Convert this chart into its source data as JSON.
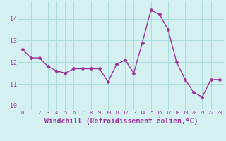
{
  "x": [
    0,
    1,
    2,
    3,
    4,
    5,
    6,
    7,
    8,
    9,
    10,
    11,
    12,
    13,
    14,
    15,
    16,
    17,
    18,
    19,
    20,
    21,
    22,
    23
  ],
  "y": [
    12.6,
    12.2,
    12.2,
    11.8,
    11.6,
    11.5,
    11.7,
    11.7,
    11.7,
    11.7,
    11.1,
    11.9,
    12.1,
    11.5,
    12.9,
    14.4,
    14.2,
    13.5,
    12.0,
    11.2,
    10.6,
    10.4,
    11.2,
    11.2
  ],
  "line_color": "#993399",
  "marker": "D",
  "markersize": 2.5,
  "linewidth": 1.0,
  "xlabel": "Windchill (Refroidissement éolien,°C)",
  "xlabel_fontsize": 7,
  "background_color": "#d4f0f0",
  "grid_color": "#aadddd",
  "tick_color": "#993399",
  "label_color": "#993399",
  "ylim": [
    9.8,
    14.8
  ],
  "xlim": [
    -0.5,
    23.5
  ],
  "yticks": [
    10,
    11,
    12,
    13,
    14
  ],
  "xticks": [
    0,
    1,
    2,
    3,
    4,
    5,
    6,
    7,
    8,
    9,
    10,
    11,
    12,
    13,
    14,
    15,
    16,
    17,
    18,
    19,
    20,
    21,
    22,
    23
  ],
  "xtick_fontsize": 5,
  "ytick_fontsize": 6
}
